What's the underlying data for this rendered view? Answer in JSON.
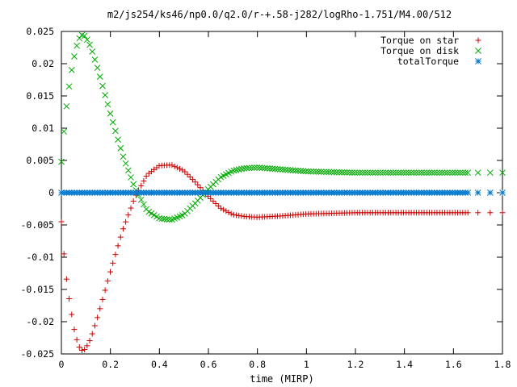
{
  "chart_data": {
    "type": "scatter",
    "title": "m2/js254/ks46/np0.0/q2.0/r-+.58-j282/logRho-1.751/M4.00/512",
    "xlabel": "time (MIRP)",
    "ylabel": "",
    "xlim": [
      0,
      1.8
    ],
    "ylim": [
      -0.025,
      0.025
    ],
    "x_ticks": [
      0,
      0.2,
      0.4,
      0.6,
      0.8,
      1,
      1.2,
      1.4,
      1.6,
      1.8
    ],
    "x_tick_labels": [
      "0",
      "0.2",
      "0.4",
      "0.6",
      "0.8",
      "1",
      "1.2",
      "1.4",
      "1.6",
      "1.8"
    ],
    "y_ticks": [
      -0.025,
      -0.02,
      -0.015,
      -0.01,
      -0.005,
      0,
      0.005,
      0.01,
      0.015,
      0.02,
      0.025
    ],
    "y_tick_labels": [
      "-0.025",
      "-0.02",
      "-0.015",
      "-0.01",
      "-0.005",
      "0",
      "0.005",
      "0.01",
      "0.015",
      "0.02",
      "0.025"
    ],
    "grid": false,
    "legend_position": "top-right",
    "series": [
      {
        "name": "Torque on star",
        "marker": "plus",
        "color": "#cc0000",
        "x": [
          0.0,
          0.01,
          0.02,
          0.03,
          0.04,
          0.05,
          0.06,
          0.07,
          0.08,
          0.09,
          0.1,
          0.12,
          0.15,
          0.2,
          0.25,
          0.3,
          0.35,
          0.4,
          0.45,
          0.5,
          0.55,
          0.6,
          0.65,
          0.7,
          0.75,
          0.8,
          0.9,
          1.0,
          1.2,
          1.4,
          1.6,
          1.7,
          1.75,
          1.8
        ],
        "values": [
          -0.0045,
          -0.0093,
          -0.0131,
          -0.0161,
          -0.0184,
          -0.0208,
          -0.0224,
          -0.0237,
          -0.0244,
          -0.0245,
          -0.0241,
          -0.0226,
          -0.019,
          -0.0122,
          -0.0058,
          -0.0007,
          0.0028,
          0.0042,
          0.0043,
          0.0034,
          0.0015,
          -0.0006,
          -0.0024,
          -0.0034,
          -0.0037,
          -0.0038,
          -0.0036,
          -0.0033,
          -0.0031,
          -0.0031,
          -0.0031,
          -0.0031,
          -0.0031,
          -0.0031
        ]
      },
      {
        "name": "Torque on disk",
        "marker": "cross",
        "color": "#00aa00",
        "x": [
          0.0,
          0.01,
          0.02,
          0.03,
          0.04,
          0.05,
          0.06,
          0.07,
          0.08,
          0.09,
          0.1,
          0.12,
          0.15,
          0.2,
          0.25,
          0.3,
          0.35,
          0.4,
          0.45,
          0.5,
          0.55,
          0.6,
          0.65,
          0.7,
          0.75,
          0.8,
          0.9,
          1.0,
          1.2,
          1.4,
          1.6,
          1.7,
          1.75,
          1.8
        ],
        "values": [
          0.0048,
          0.0093,
          0.0131,
          0.0161,
          0.0186,
          0.0207,
          0.0224,
          0.0237,
          0.0244,
          0.0245,
          0.0241,
          0.0226,
          0.019,
          0.0122,
          0.0058,
          0.0007,
          -0.0028,
          -0.004,
          -0.0042,
          -0.0034,
          -0.0015,
          0.0006,
          0.0024,
          0.0034,
          0.0038,
          0.0039,
          0.0036,
          0.0033,
          0.0031,
          0.0031,
          0.0031,
          0.0031,
          0.0031,
          0.0031
        ]
      },
      {
        "name": "totalTorque",
        "marker": "star",
        "color": "#0077cc",
        "x": [
          0.0,
          0.1,
          0.2,
          0.3,
          0.4,
          0.5,
          0.6,
          0.7,
          0.8,
          0.9,
          1.0,
          1.1,
          1.2,
          1.3,
          1.4,
          1.5,
          1.6,
          1.7,
          1.75,
          1.8
        ],
        "values": [
          0,
          0,
          0,
          0,
          0,
          0,
          0,
          0,
          0,
          0,
          0,
          0,
          0,
          0,
          0,
          0,
          0,
          0,
          0,
          0
        ]
      }
    ]
  }
}
